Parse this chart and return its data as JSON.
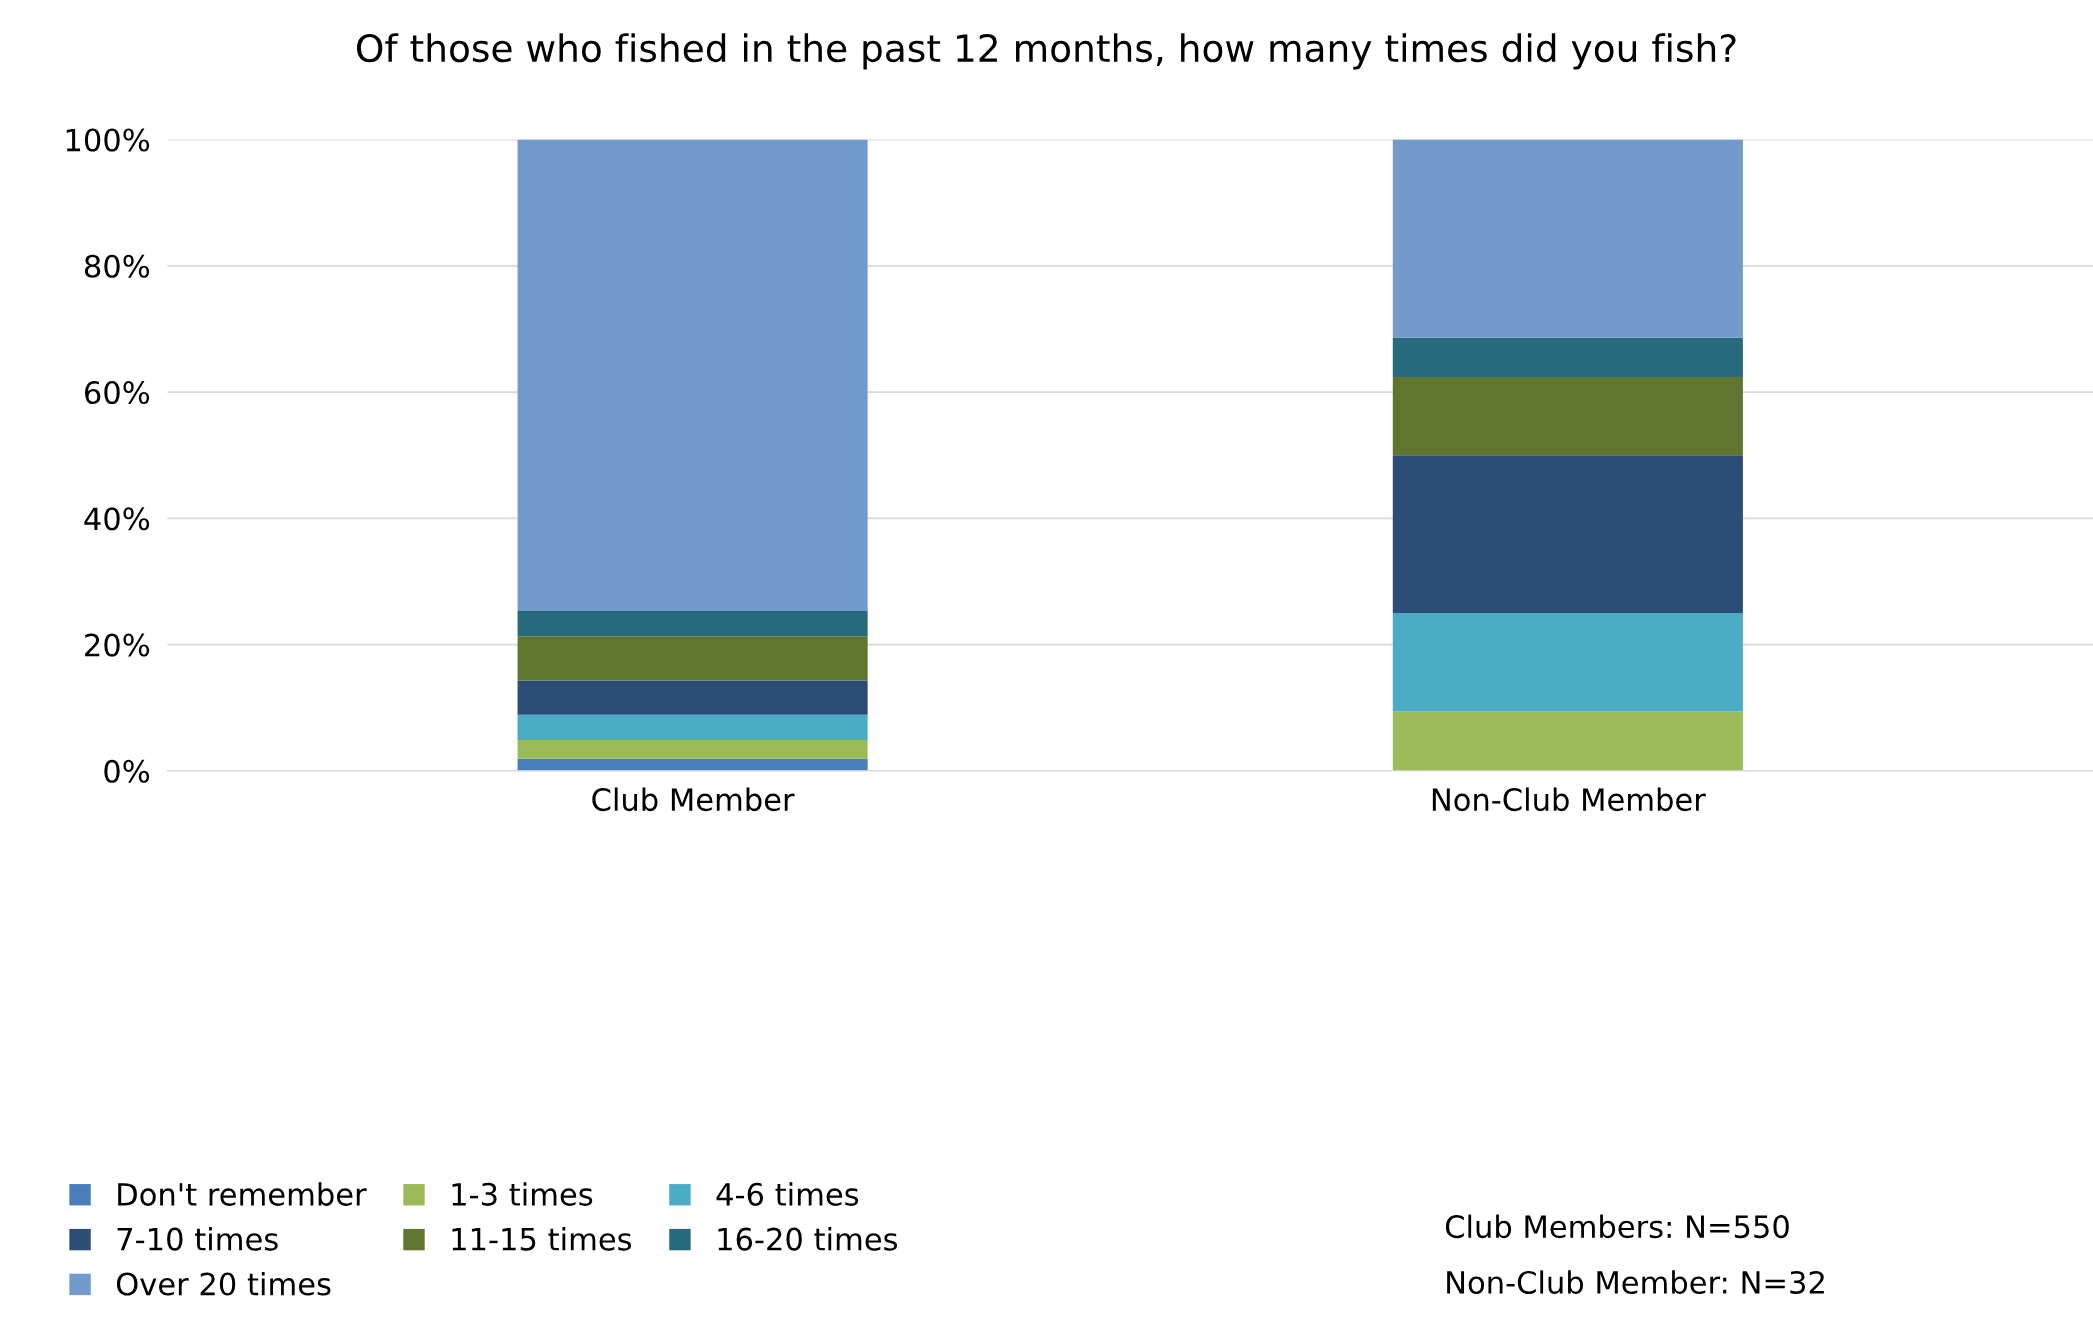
{
  "chart_data": {
    "type": "bar",
    "stacked": true,
    "title": "Of those who fished in the past 12 months, how many times did you fish?",
    "categories": [
      "Club Member",
      "Non-Club Member"
    ],
    "series": [
      {
        "name": "Don't remember",
        "color": "#4a7ebb",
        "values": [
          1.9,
          0
        ]
      },
      {
        "name": "1-3 times",
        "color": "#9bbb59",
        "values": [
          3.0,
          9.4
        ]
      },
      {
        "name": "4-6 times",
        "color": "#4bacc6",
        "values": [
          4.0,
          15.6
        ]
      },
      {
        "name": "7-10 times",
        "color": "#2c4d75",
        "values": [
          5.4,
          25.0
        ]
      },
      {
        "name": "11-15 times",
        "color": "#5f7530",
        "values": [
          7.0,
          12.4
        ]
      },
      {
        "name": "16-20 times",
        "color": "#276a7c",
        "values": [
          4.0,
          6.2
        ]
      },
      {
        "name": "Over 20 times",
        "color": "#729aca",
        "values": [
          74.7,
          31.4
        ]
      }
    ],
    "ylim": [
      0,
      100
    ],
    "yticks": [
      {
        "value": 0,
        "label": "0%"
      },
      {
        "value": 20,
        "label": "20%"
      },
      {
        "value": 40,
        "label": "40%"
      },
      {
        "value": 60,
        "label": "60%"
      },
      {
        "value": 80,
        "label": "80%"
      },
      {
        "value": 100,
        "label": "100%"
      }
    ],
    "grid": "y",
    "legend": "bottom",
    "annotations": [
      "Club Members: N=550",
      "Non-Club Member: N=32"
    ]
  }
}
